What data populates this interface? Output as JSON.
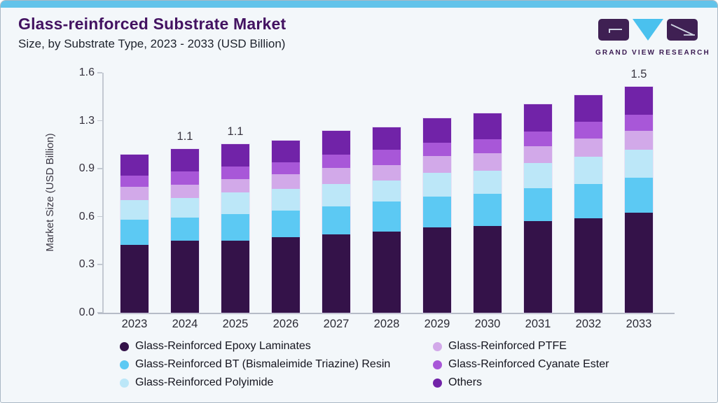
{
  "header": {
    "title": "Glass-reinforced Substrate Market",
    "subtitle": "Size, by Substrate Type, 2023 - 2033 (USD Billion)",
    "logo_text": "GRAND VIEW RESEARCH"
  },
  "colors": {
    "accent_bar": "#62c3ea",
    "card_bg": "#f3f7fa",
    "title_text": "#431261",
    "logo_purple": "#3f2053",
    "logo_blue": "#4ac1ee",
    "axis_line": "#bfc5cf"
  },
  "chart_data": {
    "type": "bar",
    "stacked": true,
    "title": "Glass-reinforced Substrate Market Size, by Substrate Type, 2023 - 2033 (USD Billion)",
    "xlabel": "",
    "ylabel": "Market Size (USD Billion)",
    "ylim": [
      0,
      1.6
    ],
    "ytick_labels": [
      "0.0",
      "0.3",
      "0.6",
      "0.9",
      "1.3",
      "1.6"
    ],
    "grid": false,
    "legend_position": "bottom",
    "categories": [
      "2023",
      "2024",
      "2025",
      "2026",
      "2027",
      "2028",
      "2029",
      "2030",
      "2031",
      "2032",
      "2033"
    ],
    "series": [
      {
        "name": "Glass-Reinforced Epoxy Laminates",
        "color": "#341249",
        "values": [
          0.452,
          0.479,
          0.482,
          0.502,
          0.522,
          0.541,
          0.568,
          0.58,
          0.611,
          0.631,
          0.666
        ]
      },
      {
        "name": "Glass-Reinforced BT (Bismaleimide Triazine) Resin",
        "color": "#5cc9f3",
        "values": [
          0.169,
          0.155,
          0.176,
          0.179,
          0.187,
          0.202,
          0.207,
          0.213,
          0.221,
          0.226,
          0.236
        ]
      },
      {
        "name": "Glass-Reinforced Polyimide",
        "color": "#bce7f8",
        "values": [
          0.129,
          0.132,
          0.143,
          0.143,
          0.151,
          0.14,
          0.159,
          0.155,
          0.168,
          0.182,
          0.184
        ]
      },
      {
        "name": "Glass-Reinforced PTFE",
        "color": "#d2a9e9",
        "values": [
          0.09,
          0.086,
          0.09,
          0.098,
          0.104,
          0.1,
          0.109,
          0.114,
          0.112,
          0.121,
          0.127
        ]
      },
      {
        "name": "Glass-Reinforced Cyanate Ester",
        "color": "#a857d8",
        "values": [
          0.073,
          0.089,
          0.083,
          0.082,
          0.09,
          0.103,
          0.093,
          0.096,
          0.098,
          0.112,
          0.109
        ]
      },
      {
        "name": "Others",
        "color": "#7123a8",
        "values": [
          0.14,
          0.149,
          0.151,
          0.143,
          0.159,
          0.151,
          0.163,
          0.171,
          0.179,
          0.179,
          0.187
        ]
      }
    ],
    "bar_value_labels": [
      "",
      "1.1",
      "1.1",
      "",
      "",
      "",
      "",
      "",
      "",
      "",
      "1.5"
    ],
    "legend_columns": [
      [
        0,
        1,
        2
      ],
      [
        3,
        4,
        5
      ]
    ]
  }
}
